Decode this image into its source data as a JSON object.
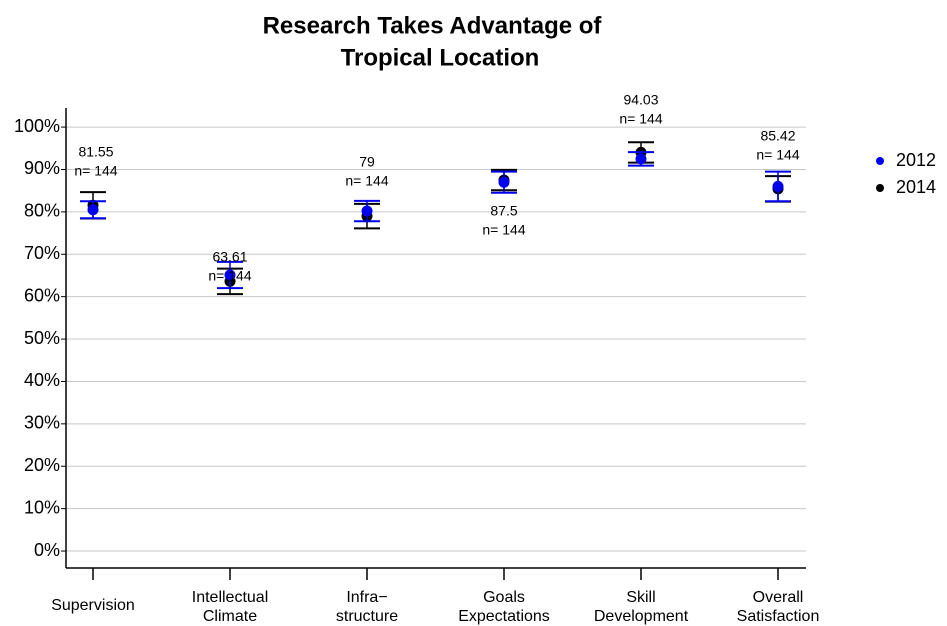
{
  "chart_data": {
    "type": "errorbar",
    "title": [
      "Research Takes Advantage of",
      "Tropical Location"
    ],
    "categories": [
      [
        "Supervision"
      ],
      [
        "Intellectual",
        "Climate"
      ],
      [
        "Infra−",
        "structure"
      ],
      [
        "Goals",
        "Expectations"
      ],
      [
        "Skill",
        "Development"
      ],
      [
        "Overall",
        "Satisfaction"
      ]
    ],
    "series": [
      {
        "name": "2014",
        "color": "#000000",
        "values": [
          81.55,
          63.61,
          79,
          87.5,
          94.03,
          85.42
        ],
        "errors": [
          3.1,
          3.0,
          2.9,
          2.4,
          2.4,
          3.0
        ],
        "n_labels": [
          "n= 144",
          "n= 144",
          "n= 144",
          "n= 144",
          "n= 144",
          "n= 144"
        ]
      },
      {
        "name": "2012",
        "color": "#0000ee",
        "values": [
          80.5,
          65.1,
          80.2,
          87,
          92.5,
          86
        ],
        "errors": [
          2.0,
          3.1,
          2.4,
          2.5,
          1.6,
          3.5
        ]
      }
    ],
    "legend_order": [
      1,
      0
    ],
    "ylim": [
      -4,
      104.5
    ],
    "yticks": [
      {
        "value": 0,
        "label": "0%"
      },
      {
        "value": 10,
        "label": "10%"
      },
      {
        "value": 20,
        "label": "20%"
      },
      {
        "value": 30,
        "label": "30%"
      },
      {
        "value": 40,
        "label": "40%"
      },
      {
        "value": 50,
        "label": "50%"
      },
      {
        "value": 60,
        "label": "60%"
      },
      {
        "value": 70,
        "label": "70%"
      },
      {
        "value": 80,
        "label": "80%"
      },
      {
        "value": 90,
        "label": "90%"
      },
      {
        "value": 100,
        "label": "100%"
      }
    ],
    "grid": true,
    "legend": "right"
  }
}
